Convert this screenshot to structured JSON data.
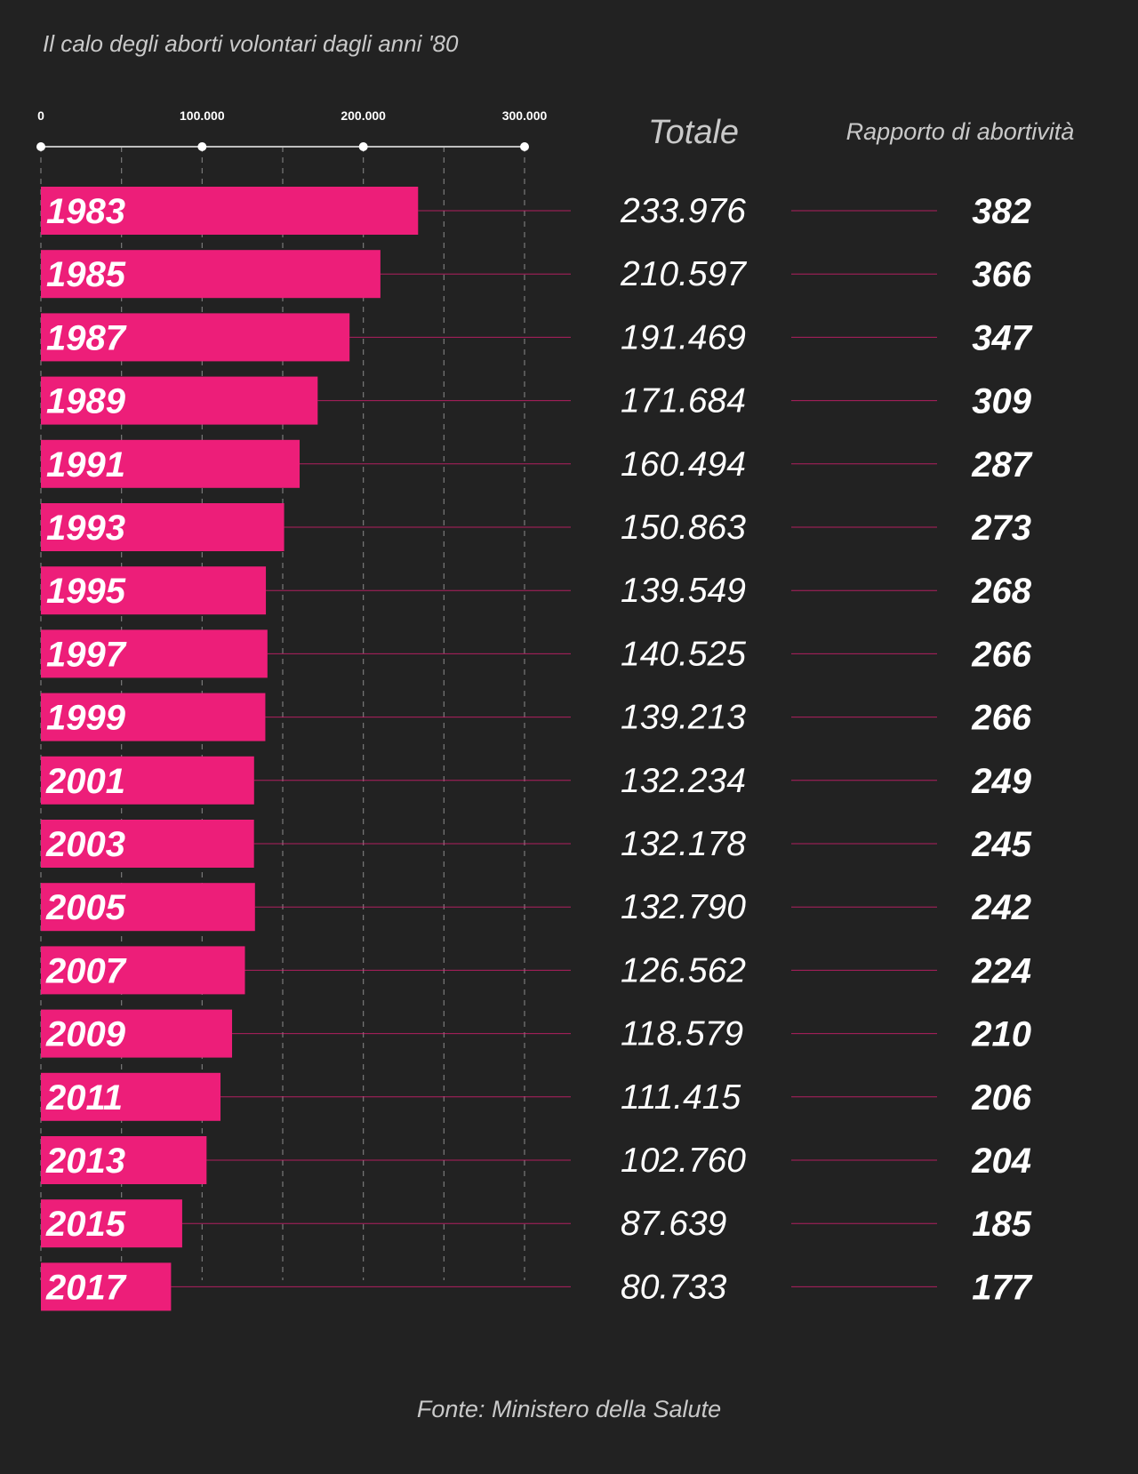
{
  "subtitle": "Il calo degli aborti volontari dagli anni '80",
  "source": "Fonte: Ministero della Salute",
  "colors": {
    "background": "#222222",
    "bar": "#ED1E79",
    "text": "#ffffff",
    "muted": "#c9c9c9",
    "axis": "#bfbfbf"
  },
  "chart_data": {
    "type": "bar",
    "orientation": "horizontal",
    "title": "",
    "subtitle": "Il calo degli aborti volontari dagli anni '80",
    "xlim": [
      0,
      300000
    ],
    "grid": true,
    "ticks": [
      {
        "value": 0,
        "label": "0"
      },
      {
        "value": 100000,
        "label": "100.000"
      },
      {
        "value": 200000,
        "label": "200.000"
      },
      {
        "value": 300000,
        "label": "300.000"
      }
    ],
    "columns": {
      "total": "Totale",
      "ratio": "Rapporto di abortività"
    },
    "categories": [
      "1983",
      "1985",
      "1987",
      "1989",
      "1991",
      "1993",
      "1995",
      "1997",
      "1999",
      "2001",
      "2003",
      "2005",
      "2007",
      "2009",
      "2011",
      "2013",
      "2015",
      "2017"
    ],
    "values": [
      233976,
      210597,
      191469,
      171684,
      160494,
      150863,
      139549,
      140525,
      139213,
      132234,
      132178,
      132790,
      126562,
      118579,
      111415,
      102760,
      87639,
      80733
    ],
    "total_labels": [
      "233.976",
      "210.597",
      "191.469",
      "171.684",
      "160.494",
      "150.863",
      "139.549",
      "140.525",
      "139.213",
      "132.234",
      "132.178",
      "132.790",
      "126.562",
      "118.579",
      "111.415",
      "102.760",
      "87.639",
      "80.733"
    ],
    "ratio_labels": [
      "382",
      "366",
      "347",
      "309",
      "287",
      "273",
      "268",
      "266",
      "266",
      "249",
      "245",
      "242",
      "224",
      "210",
      "206",
      "204",
      "185",
      "177"
    ]
  }
}
